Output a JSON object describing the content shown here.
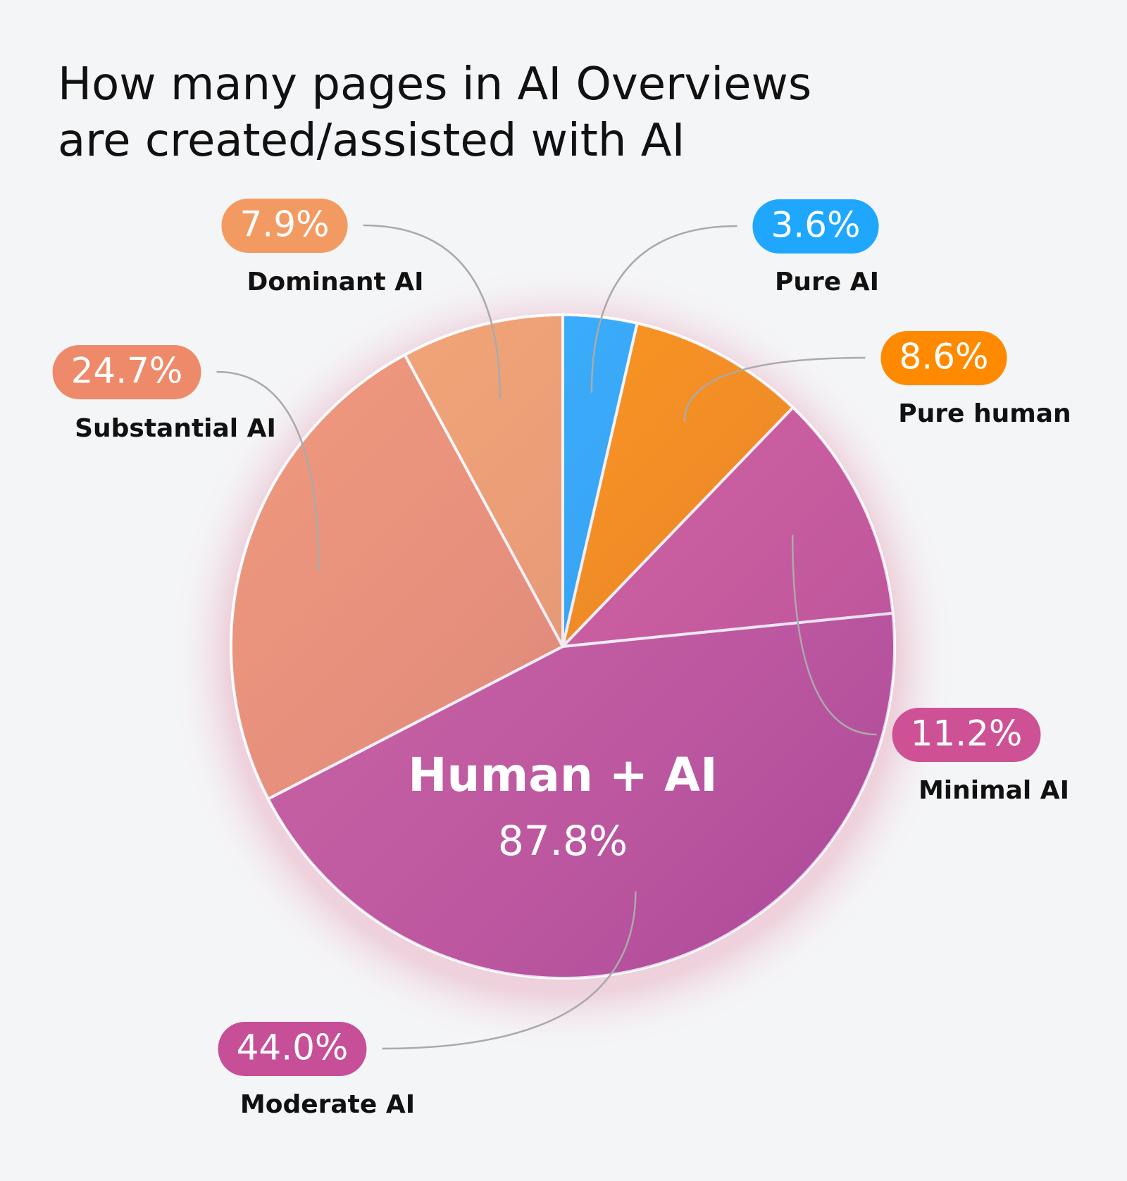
{
  "chart_data": {
    "type": "pie",
    "title": "How many pages in AI Overviews are created/assisted with AI",
    "categories": [
      "Pure AI",
      "Pure human",
      "Minimal AI",
      "Moderate AI",
      "Substantial AI",
      "Dominant AI"
    ],
    "values": [
      3.6,
      8.6,
      11.2,
      44.0,
      24.7,
      7.9
    ],
    "value_labels": [
      "3.6%",
      "8.6%",
      "11.2%",
      "44.0%",
      "24.7%",
      "7.9%"
    ],
    "colors": [
      "#1ea7fd",
      "#ff8a00",
      "#cf5195",
      "#c64f98",
      "#ee8a6a",
      "#f39a63"
    ],
    "annotations": [
      "Human + AI",
      "87.8%"
    ]
  }
}
